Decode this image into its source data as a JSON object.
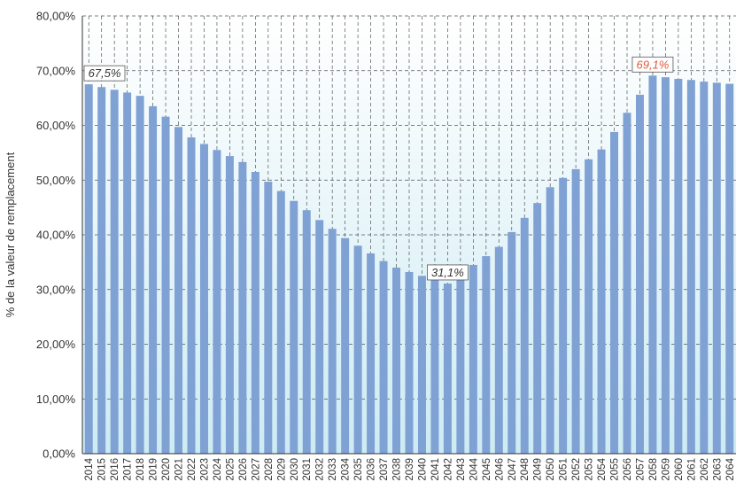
{
  "chart_data": {
    "type": "bar",
    "ylabel": "% de la valeur de remplacement",
    "xlabel": "",
    "ylim": [
      0,
      80
    ],
    "y_ticks": [
      0,
      10,
      20,
      30,
      40,
      50,
      60,
      70,
      80
    ],
    "y_tick_labels": [
      "0,00%",
      "10,00%",
      "20,00%",
      "30,00%",
      "40,00%",
      "50,00%",
      "60,00%",
      "70,00%",
      "80,00%"
    ],
    "grid": true,
    "categories": [
      "2014",
      "2015",
      "2016",
      "2017",
      "2018",
      "2019",
      "2020",
      "2021",
      "2022",
      "2023",
      "2024",
      "2025",
      "2026",
      "2027",
      "2028",
      "2029",
      "2030",
      "2031",
      "2032",
      "2033",
      "2034",
      "2035",
      "2036",
      "2037",
      "2038",
      "2039",
      "2040",
      "2041",
      "2042",
      "2043",
      "2044",
      "2045",
      "2046",
      "2047",
      "2048",
      "2049",
      "2050",
      "2051",
      "2052",
      "2053",
      "2054",
      "2055",
      "2056",
      "2057",
      "2058",
      "2059",
      "2060",
      "2061",
      "2062",
      "2063",
      "2064"
    ],
    "values": [
      67.5,
      67.0,
      66.5,
      66.0,
      65.4,
      63.5,
      61.6,
      59.7,
      57.8,
      56.6,
      55.5,
      54.4,
      53.3,
      51.5,
      49.7,
      48.0,
      46.2,
      44.5,
      42.7,
      41.1,
      39.4,
      38.0,
      36.6,
      35.2,
      34.0,
      33.2,
      32.5,
      31.8,
      31.1,
      32.8,
      34.5,
      36.1,
      37.8,
      40.5,
      43.1,
      45.8,
      48.7,
      50.4,
      52.0,
      53.8,
      55.6,
      58.8,
      62.3,
      65.6,
      69.1,
      68.8,
      68.5,
      68.3,
      68.0,
      67.8,
      67.6
    ],
    "annotations": [
      {
        "category": "2014",
        "label": "67,5%",
        "color": "#333333"
      },
      {
        "category": "2042",
        "label": "31,1%",
        "color": "#333333"
      },
      {
        "category": "2058",
        "label": "69,1%",
        "color": "#e05a3a"
      }
    ],
    "colors": {
      "bar": "#7fa1d3",
      "background_top": "#ffffff",
      "background_bottom": "#cdebf4",
      "grid": "#555555"
    }
  }
}
